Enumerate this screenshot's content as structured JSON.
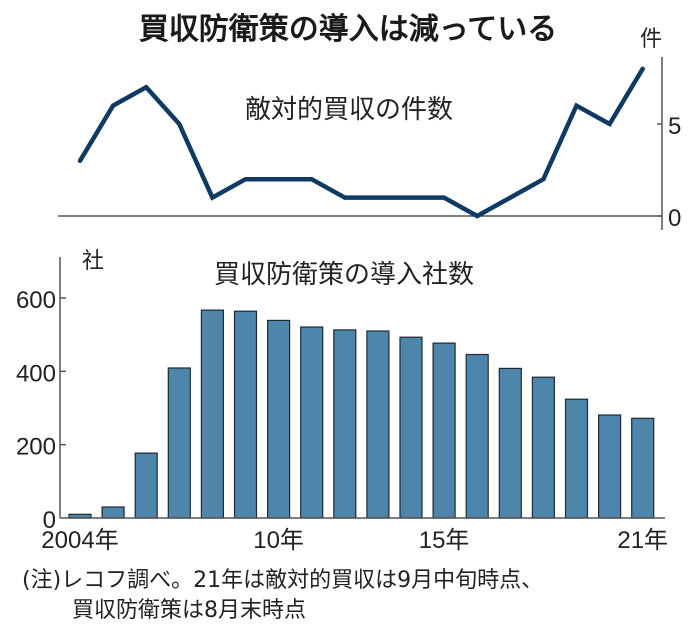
{
  "title": "買収防衛策の導入は減っている",
  "colors": {
    "line": "#0f3a64",
    "bar_fill": "#4e86ab",
    "bar_stroke": "#1f2a33",
    "axis": "#555555",
    "text": "#222222"
  },
  "line_chart": {
    "label": "敵対的買収の件数",
    "unit": "件",
    "y_ticks": [
      "5",
      "0"
    ]
  },
  "bar_chart": {
    "label": "買収防衛策の導入社数",
    "unit": "社",
    "y_ticks": [
      "600",
      "400",
      "200",
      "0"
    ],
    "x_ticks": [
      "2004年",
      "10年",
      "15年",
      "21年"
    ]
  },
  "footnote": {
    "line1": "(注)レコフ調べ。21年は敵対的買収は9月中旬時点、",
    "line2": "買収防衛策は8月末時点"
  },
  "chart_data": [
    {
      "type": "line",
      "title": "敵対的買収の件数",
      "ylabel": "件",
      "x": [
        2004,
        2005,
        2006,
        2007,
        2008,
        2009,
        2010,
        2011,
        2012,
        2013,
        2014,
        2015,
        2016,
        2017,
        2018,
        2019,
        2020,
        2021
      ],
      "values": [
        3,
        6,
        7,
        5,
        1,
        2,
        2,
        2,
        1,
        1,
        1,
        1,
        0,
        1,
        2,
        6,
        5,
        8
      ],
      "ylim": [
        0,
        9
      ],
      "y_ticks": [
        0,
        5
      ],
      "grid": false,
      "legend": null
    },
    {
      "type": "bar",
      "title": "買収防衛策の導入社数",
      "ylabel": "社",
      "xlabel": "",
      "categories": [
        "2004",
        "2005",
        "2006",
        "2007",
        "2008",
        "2009",
        "2010",
        "2011",
        "2012",
        "2013",
        "2014",
        "2015",
        "2016",
        "2017",
        "2018",
        "2019",
        "2020",
        "2021"
      ],
      "values": [
        10,
        30,
        177,
        409,
        567,
        564,
        539,
        521,
        513,
        510,
        493,
        477,
        446,
        408,
        384,
        324,
        281,
        272
      ],
      "x_tick_labels": [
        "2004年",
        "10年",
        "15年",
        "21年"
      ],
      "ylim": [
        0,
        700
      ],
      "y_ticks": [
        0,
        200,
        400,
        600
      ],
      "grid": false,
      "legend": null
    }
  ]
}
